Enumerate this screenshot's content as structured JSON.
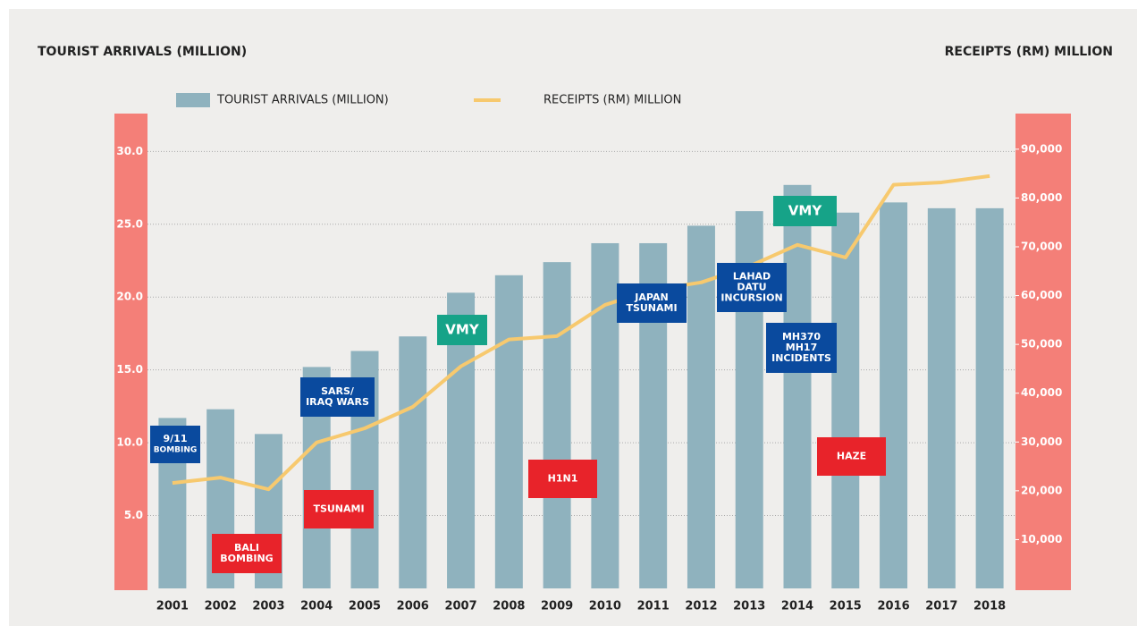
{
  "chart_data": {
    "type": "bar",
    "y_label": "TOURIST ARRIVALS (MILLION)",
    "y2_label": "RECEIPTS (RM) MILLION",
    "categories": [
      "2001",
      "2002",
      "2003",
      "2004",
      "2005",
      "2006",
      "2007",
      "2008",
      "2009",
      "2010",
      "2011",
      "2012",
      "2013",
      "2014",
      "2015",
      "2016",
      "2017",
      "2018"
    ],
    "series": [
      {
        "name": "TOURIST ARRIVALS (MILLION)",
        "type": "bar",
        "color": "#8fb2be",
        "values": [
          11.7,
          12.3,
          10.6,
          15.2,
          16.3,
          17.3,
          20.3,
          21.5,
          22.4,
          23.7,
          23.7,
          24.9,
          25.9,
          27.7,
          25.8,
          26.5,
          26.1,
          26.1
        ]
      },
      {
        "name": "RECEIPTS (RM) MILLION",
        "type": "line",
        "axis": "y2",
        "color": "#f7c96e",
        "values": [
          21600,
          22700,
          20300,
          29900,
          32800,
          37200,
          45500,
          51000,
          51700,
          58100,
          61200,
          62700,
          66000,
          70400,
          67800,
          82700,
          83200,
          84500
        ]
      }
    ],
    "ylim": [
      0,
      32.6
    ],
    "yticks": [
      {
        "value": 5,
        "label": "5.0"
      },
      {
        "value": 10,
        "label": "10.0"
      },
      {
        "value": 15,
        "label": "15.0"
      },
      {
        "value": 20,
        "label": "20.0"
      },
      {
        "value": 25,
        "label": "25.0"
      },
      {
        "value": 30,
        "label": "30.0"
      }
    ],
    "y2lim": [
      0,
      97300
    ],
    "y2ticks": [
      {
        "value": 10000,
        "label": "10,000"
      },
      {
        "value": 20000,
        "label": "20,000"
      },
      {
        "value": 30000,
        "label": "30,000"
      },
      {
        "value": 40000,
        "label": "40,000"
      },
      {
        "value": 50000,
        "label": "50,000"
      },
      {
        "value": 60000,
        "label": "60,000"
      },
      {
        "value": 70000,
        "label": "70,000"
      },
      {
        "value": 80000,
        "label": "80,000"
      },
      {
        "value": 90000,
        "label": "90,000"
      }
    ],
    "grid": true,
    "axis_band_color": "#f47f78",
    "annotations": [
      {
        "lines": [
          "9/11",
          "BOMBING"
        ],
        "color": "#0a4a9e"
      },
      {
        "lines": [
          "BALI",
          "BOMBING"
        ],
        "color": "#e8232a"
      },
      {
        "lines": [
          "SARS/",
          "IRAQ WARS"
        ],
        "color": "#0a4a9e"
      },
      {
        "lines": [
          "TSUNAMI"
        ],
        "color": "#e8232a"
      },
      {
        "lines": [
          "VMY"
        ],
        "color": "#16a388"
      },
      {
        "lines": [
          "H1N1"
        ],
        "color": "#e8232a"
      },
      {
        "lines": [
          "JAPAN",
          "TSUNAMI"
        ],
        "color": "#0a4a9e"
      },
      {
        "lines": [
          "LAHAD",
          "DATU",
          "INCURSION"
        ],
        "color": "#0a4a9e"
      },
      {
        "lines": [
          "MH370",
          "MH17",
          "INCIDENTS"
        ],
        "color": "#0a4a9e"
      },
      {
        "lines": [
          "VMY"
        ],
        "color": "#16a388"
      },
      {
        "lines": [
          "HAZE"
        ],
        "color": "#e8232a"
      }
    ]
  }
}
